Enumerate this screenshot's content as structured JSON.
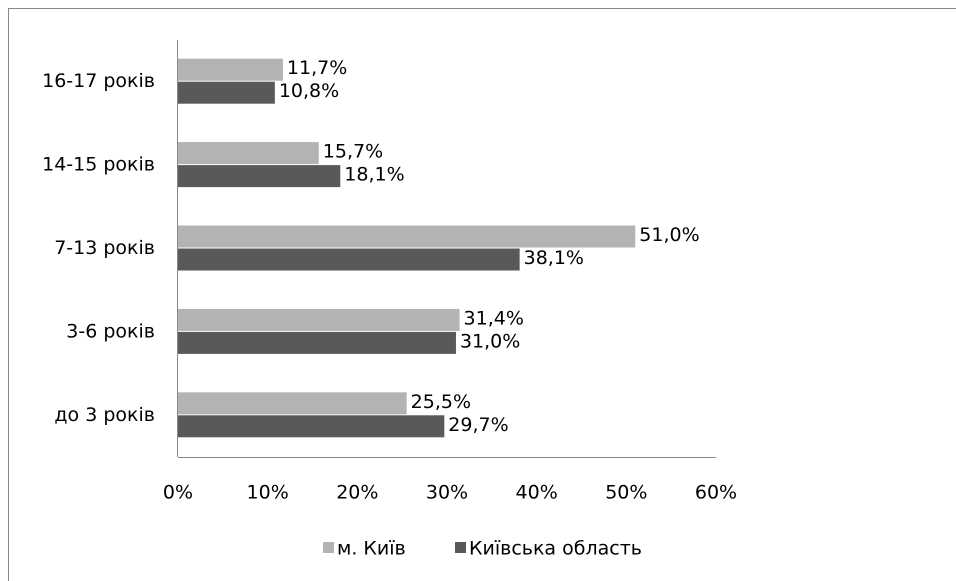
{
  "chart_data": {
    "type": "barh",
    "categories": [
      "16-17 років",
      "14-15 років",
      "7-13 років",
      "3-6 років",
      "до 3 років"
    ],
    "series": [
      {
        "name": "м. Київ",
        "color": "#b3b3b3",
        "values": [
          11.7,
          15.7,
          51.0,
          31.4,
          25.5
        ],
        "value_labels": [
          "11,7%",
          "15,7%",
          "51,0%",
          "31,4%",
          "25,5%"
        ]
      },
      {
        "name": "Київська область",
        "color": "#595959",
        "values": [
          10.8,
          18.1,
          38.1,
          31.0,
          29.7
        ],
        "value_labels": [
          "10,8%",
          "18,1%",
          "38,1%",
          "31,0%",
          "29,7%"
        ]
      }
    ],
    "xlim": [
      0,
      60
    ],
    "xticks": [
      {
        "value": 0,
        "label": "0%"
      },
      {
        "value": 10,
        "label": "10%"
      },
      {
        "value": 20,
        "label": "20%"
      },
      {
        "value": 30,
        "label": "30%"
      },
      {
        "value": 40,
        "label": "40%"
      },
      {
        "value": 50,
        "label": "50%"
      },
      {
        "value": 60,
        "label": "60%"
      }
    ],
    "legend": "bottom"
  }
}
